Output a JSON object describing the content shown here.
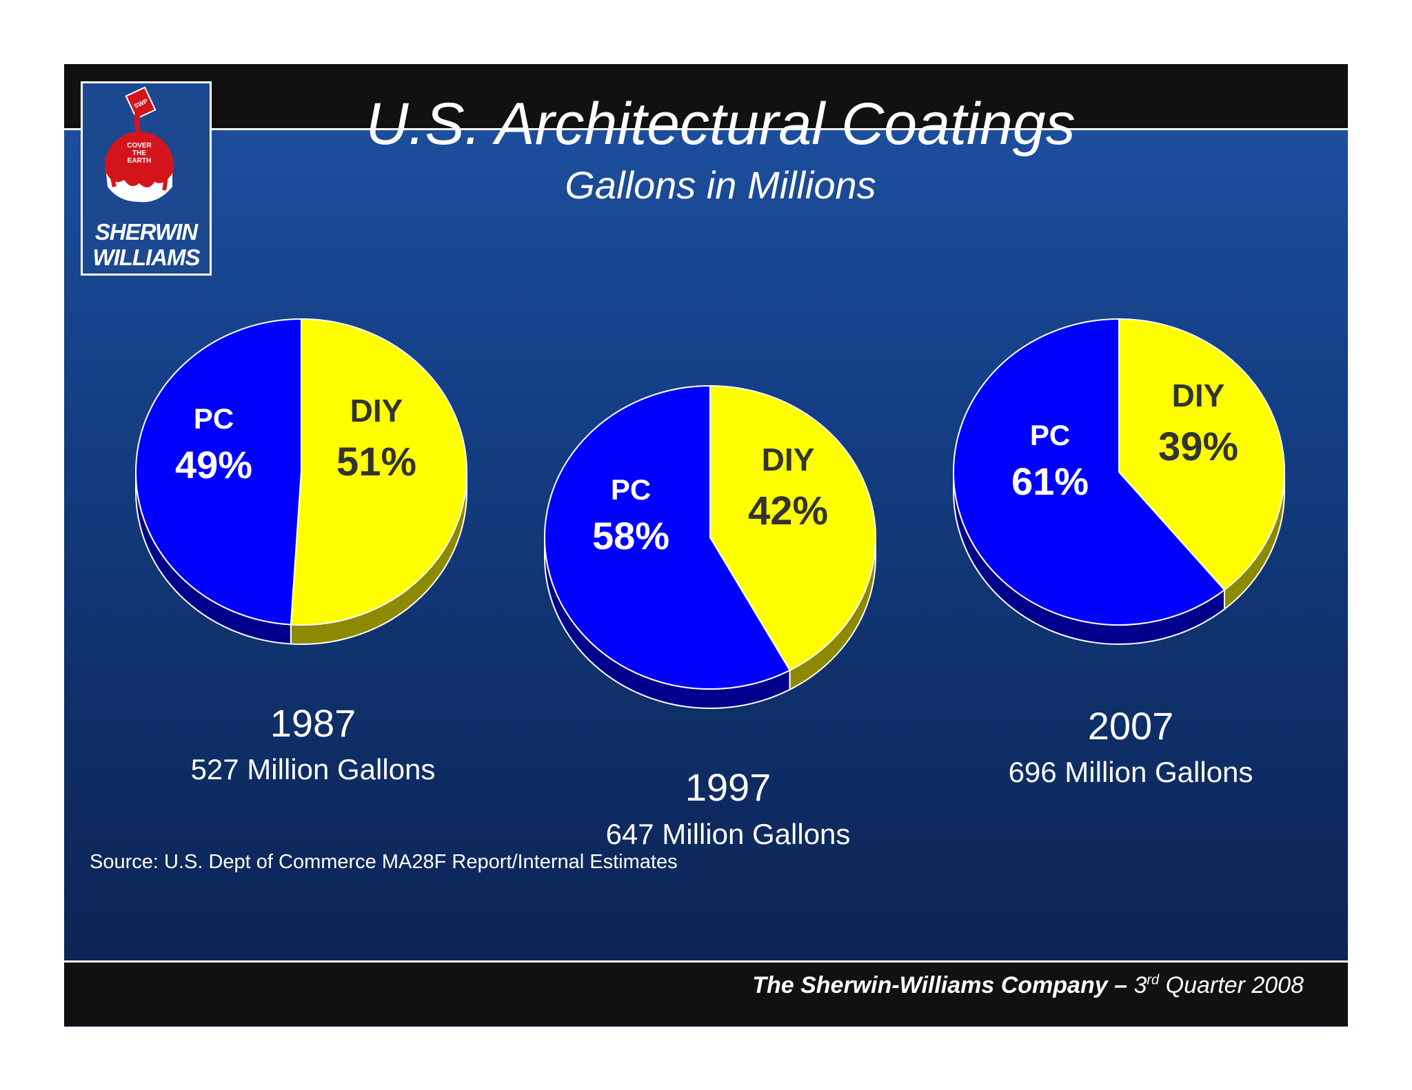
{
  "slide": {
    "title": "U.S. Architectural Coatings",
    "subtitle": "Gallons in Millions",
    "source": "Source:  U.S. Dept of Commerce MA28F Report/Internal Estimates",
    "footer": {
      "company": "The Sherwin-Williams Company –",
      "ordinal": "3",
      "ordinal_suffix": "rd",
      "period": "Quarter 2008"
    },
    "logo": {
      "line1": "SHERWIN",
      "line2": "WILLIAMS",
      "tagline": [
        "COVER",
        "THE",
        "EARTH"
      ],
      "can_text": "SWP"
    }
  },
  "colors": {
    "pc": "#0000ff",
    "pc_side": "#00008c",
    "diy": "#ffff00",
    "diy_side": "#8c8a00",
    "pc_label": "#ffffff",
    "diy_label": "#333333"
  },
  "chart_data": [
    {
      "type": "pie",
      "year": "1987",
      "total_label": "527 Million Gallons",
      "total": 527,
      "slices": [
        {
          "name": "PC",
          "value": 49,
          "label": "49%"
        },
        {
          "name": "DIY",
          "value": 51,
          "label": "51%"
        }
      ]
    },
    {
      "type": "pie",
      "year": "1997",
      "total_label": "647 Million Gallons",
      "total": 647,
      "slices": [
        {
          "name": "PC",
          "value": 58,
          "label": "58%"
        },
        {
          "name": "DIY",
          "value": 42,
          "label": "42%"
        }
      ]
    },
    {
      "type": "pie",
      "year": "2007",
      "total_label": "696 Million Gallons",
      "total": 696,
      "slices": [
        {
          "name": "PC",
          "value": 61,
          "label": "61%"
        },
        {
          "name": "DIY",
          "value": 39,
          "label": "39%"
        }
      ]
    }
  ]
}
